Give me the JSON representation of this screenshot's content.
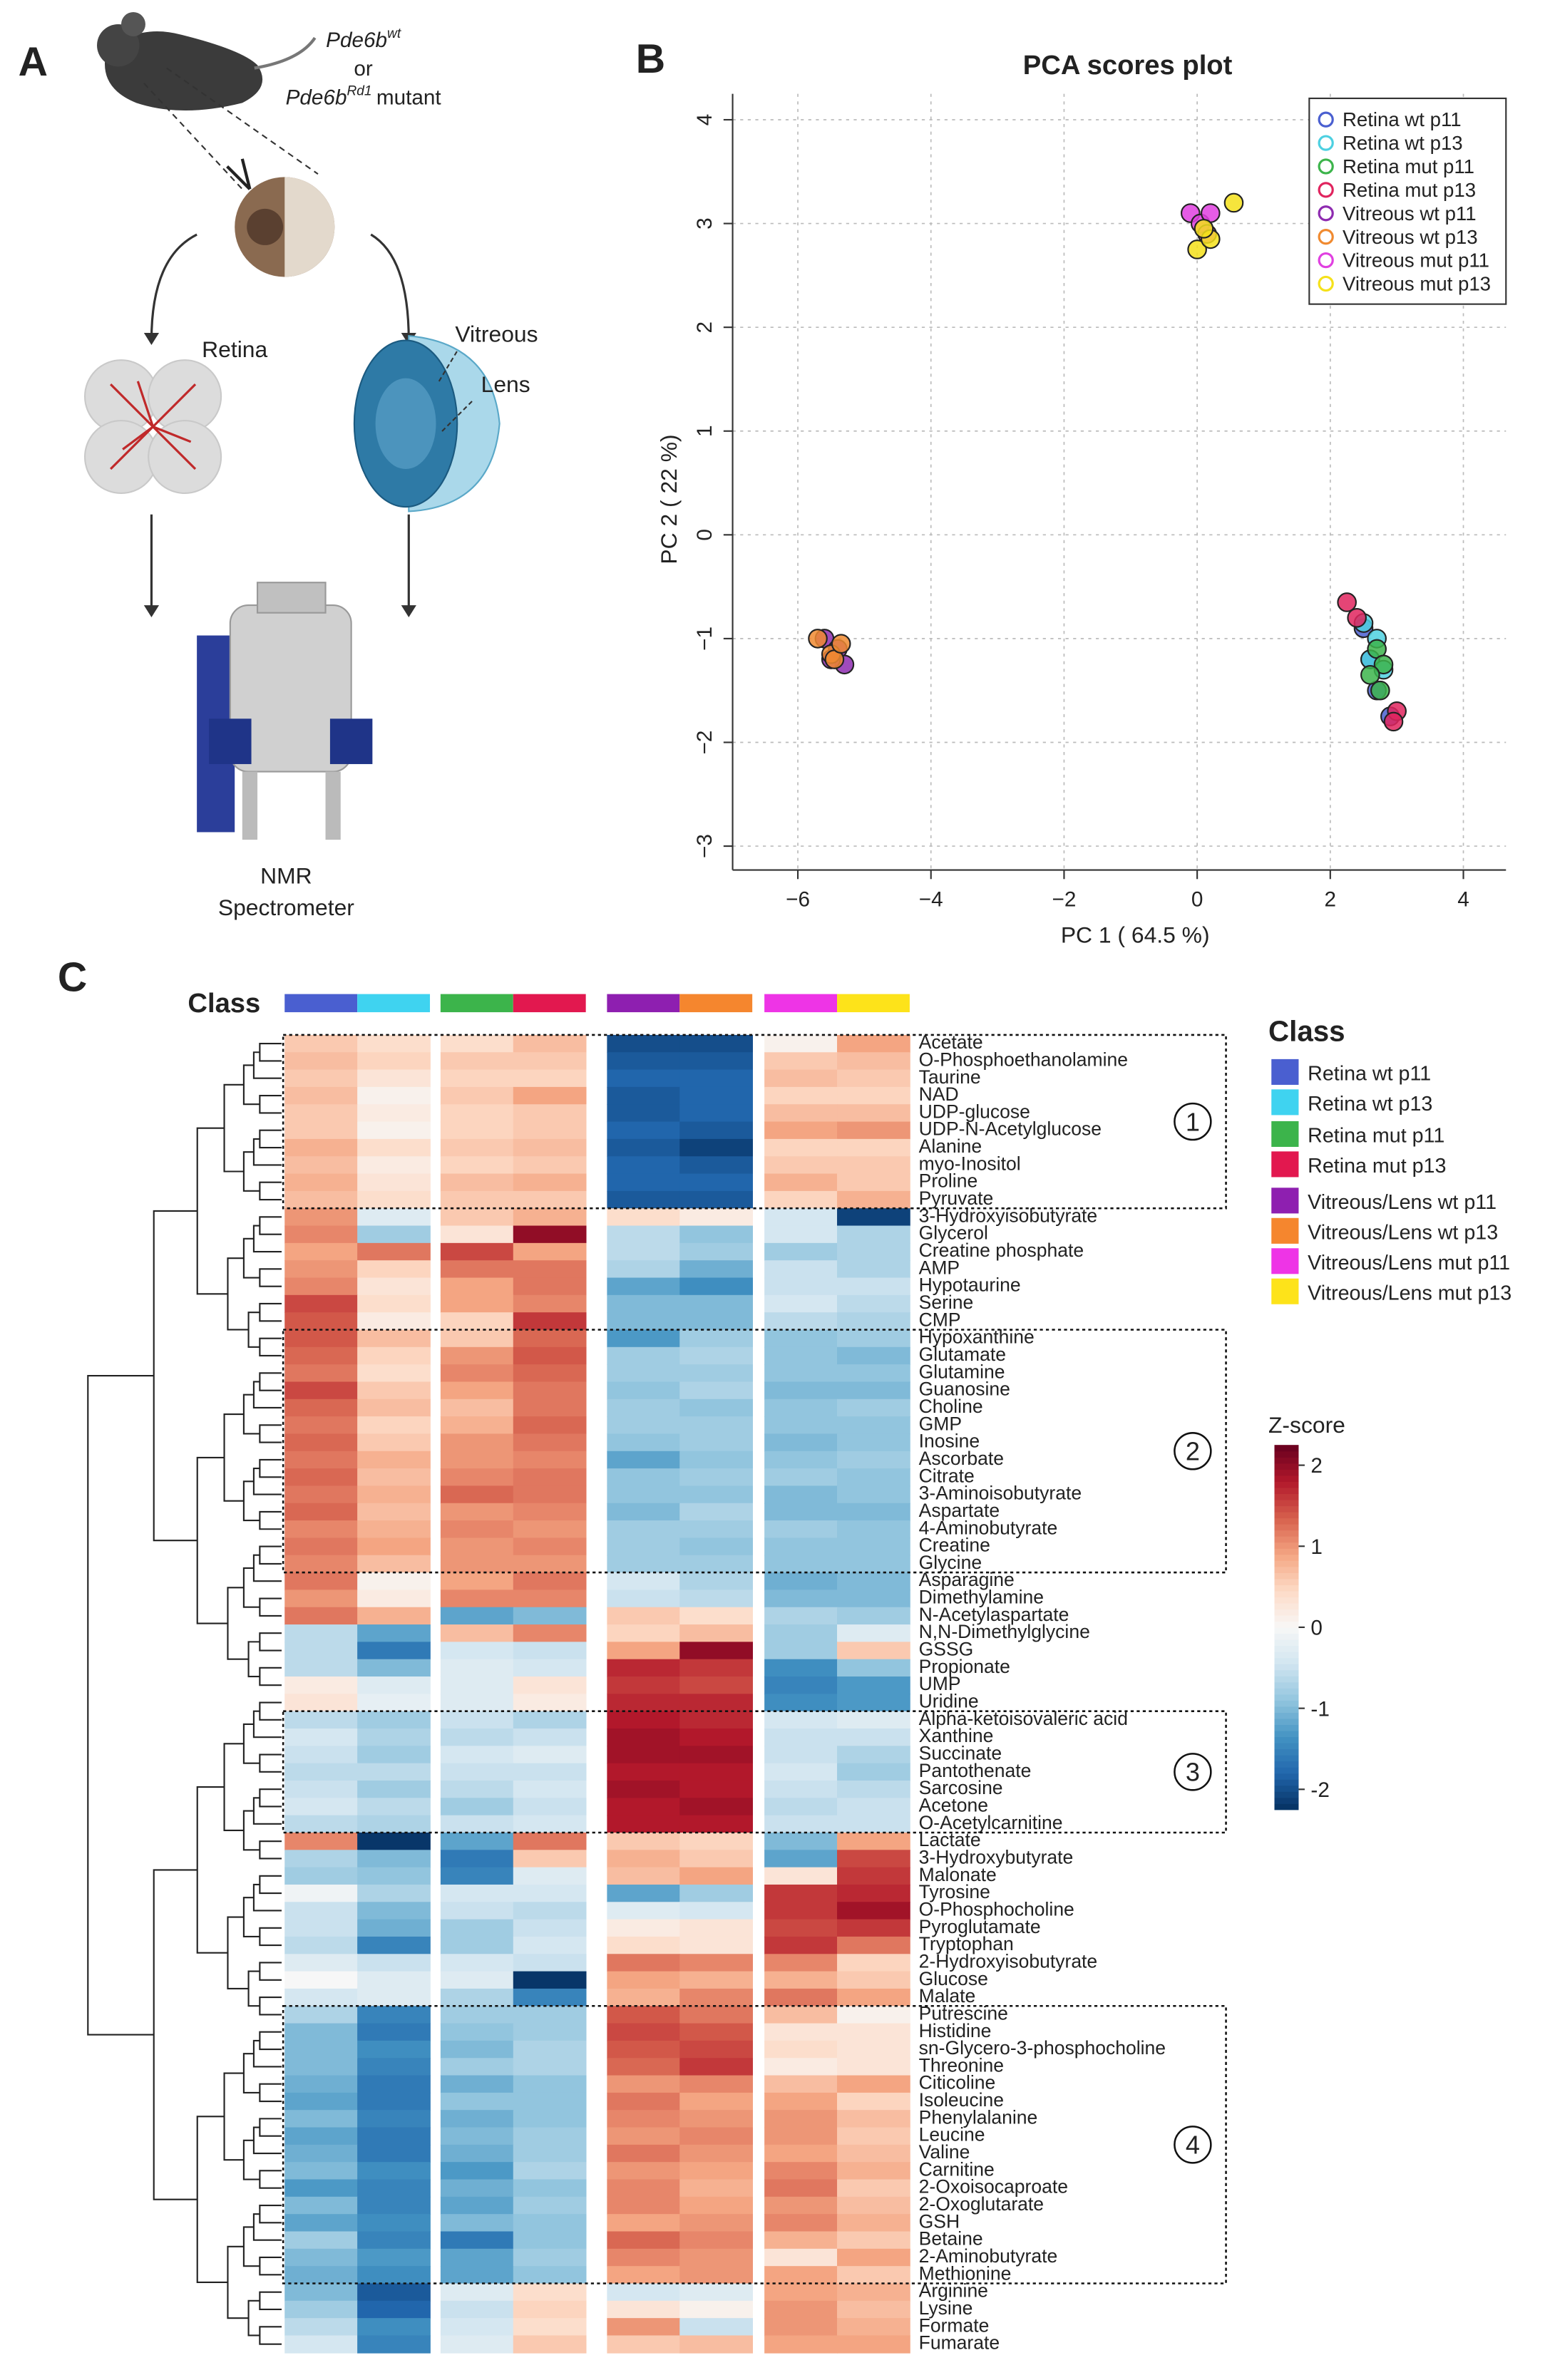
{
  "panels": {
    "a": "A",
    "b": "B",
    "c": "C"
  },
  "illustration": {
    "genotype_wt": {
      "gene": "Pde6b",
      "allele": "wt"
    },
    "or": "or",
    "genotype_mut": {
      "gene": "Pde6b",
      "allele": "Rd1",
      "suffix": "mutant"
    },
    "retina": "Retina",
    "vitreous": "Vitreous",
    "lens": "Lens",
    "instrument": [
      "NMR",
      "Spectrometer"
    ]
  },
  "chart_data": [
    {
      "type": "scatter",
      "title": "PCA scores plot",
      "xlabel": "PC 1 ( 64.5 %)",
      "ylabel": "PC 2 ( 22 %)",
      "xlim": [
        -6.98,
        4.64
      ],
      "ylim": [
        -3.23,
        4.25
      ],
      "xticks": [
        {
          "value": -6,
          "label": "−6"
        },
        {
          "value": -4,
          "label": "−4"
        },
        {
          "value": -2,
          "label": "−2"
        },
        0,
        2,
        4
      ],
      "yticks": [
        {
          "value": -3,
          "label": "−3"
        },
        {
          "value": -2,
          "label": "−2"
        },
        {
          "value": -1,
          "label": "−1"
        },
        0,
        1,
        2,
        3,
        4
      ],
      "grid": true,
      "legend": "top-right",
      "series": [
        {
          "name": "Retina wt p11",
          "color": "#4a5fd0",
          "x": [
            2.6,
            2.7,
            2.9,
            2.5
          ],
          "values": [
            -1.2,
            -1.5,
            -1.75,
            -0.9
          ]
        },
        {
          "name": "Retina wt p13",
          "color": "#4dd0e1",
          "x": [
            2.5,
            2.7,
            2.6,
            2.8
          ],
          "values": [
            -0.85,
            -1.0,
            -1.2,
            -1.3
          ]
        },
        {
          "name": "Retina mut p11",
          "color": "#3cb44b",
          "x": [
            2.7,
            2.8,
            2.6,
            2.75
          ],
          "values": [
            -1.1,
            -1.25,
            -1.35,
            -1.5
          ]
        },
        {
          "name": "Retina mut p13",
          "color": "#e0245e",
          "x": [
            2.25,
            2.4,
            3.0,
            2.95
          ],
          "values": [
            -0.65,
            -0.8,
            -1.7,
            -1.8
          ]
        },
        {
          "name": "Vitreous wt p11",
          "color": "#8e2bb0",
          "x": [
            -5.6,
            -5.4,
            -5.3,
            -5.5
          ],
          "values": [
            -1.0,
            -1.1,
            -1.25,
            -1.2
          ]
        },
        {
          "name": "Vitreous wt p13",
          "color": "#f08a30",
          "x": [
            -5.7,
            -5.5,
            -5.45,
            -5.35
          ],
          "values": [
            -1.0,
            -1.15,
            -1.2,
            -1.05
          ]
        },
        {
          "name": "Vitreous mut p11",
          "color": "#e040e0",
          "x": [
            -0.1,
            0.05,
            0.15,
            0.2
          ],
          "values": [
            3.1,
            3.0,
            2.9,
            3.1
          ]
        },
        {
          "name": "Vitreous mut p13",
          "color": "#f5e11a",
          "x": [
            0.0,
            0.2,
            0.55,
            0.1
          ],
          "values": [
            2.75,
            2.85,
            3.2,
            2.95
          ]
        }
      ]
    },
    {
      "type": "heatmap",
      "column_label": "Class",
      "legend_title": "Class",
      "columns": [
        "Retina wt p11",
        "Retina wt p13",
        "Retina mut p11",
        "Retina mut p13",
        "Vitreous/Lens wt p11",
        "Vitreous/Lens wt p13",
        "Vitreous/Lens mut p11",
        "Vitreous/Lens mut p13"
      ],
      "column_colors": [
        "#4a5fd0",
        "#3fd3f0",
        "#3cb44b",
        "#e2184f",
        "#8e1fb0",
        "#f5862e",
        "#ee34e6",
        "#fde31a"
      ],
      "colorbar_title": "Z-score",
      "zlim": [
        -2.25,
        2.25
      ],
      "zticks": [
        -2,
        -1,
        0,
        1,
        2
      ],
      "colors": [
        "#053061",
        "#2166ac",
        "#4393c3",
        "#92c5de",
        "#d1e5f0",
        "#f7f7f7",
        "#fddbc7",
        "#f4a582",
        "#d6604d",
        "#b2182b",
        "#67001f"
      ],
      "boxes": [
        {
          "label": "1",
          "rows": [
            0,
            9
          ]
        },
        {
          "label": "2",
          "rows": [
            17,
            30
          ]
        },
        {
          "label": "3",
          "rows": [
            39,
            45
          ]
        },
        {
          "label": "4",
          "rows": [
            56,
            71
          ]
        }
      ],
      "rows": [
        "Acetate",
        "O-Phosphoethanolamine",
        "Taurine",
        "NAD",
        "UDP-glucose",
        "UDP-N-Acetylglucose",
        "Alanine",
        "myo-Inositol",
        "Proline",
        "Pyruvate",
        "3-Hydroxyisobutyrate",
        "Glycerol",
        "Creatine phosphate",
        "AMP",
        "Hypotaurine",
        "Serine",
        "CMP",
        "Hypoxanthine",
        "Glutamate",
        "Glutamine",
        "Guanosine",
        "Choline",
        "GMP",
        "Inosine",
        "Ascorbate",
        "Citrate",
        "3-Aminoisobutyrate",
        "Aspartate",
        "4-Aminobutyrate",
        "Creatine",
        "Glycine",
        "Asparagine",
        "Dimethylamine",
        "N-Acetylaspartate",
        "N,N-Dimethylglycine",
        "GSSG",
        "Propionate",
        "UMP",
        "Uridine",
        "Alpha-ketoisovaleric acid",
        "Xanthine",
        "Succinate",
        "Pantothenate",
        "Sarcosine",
        "Acetone",
        "O-Acetylcarnitine",
        "Lactate",
        "3-Hydroxybutyrate",
        "Malonate",
        "Tyrosine",
        "O-Phosphocholine",
        "Pyroglutamate",
        "Tryptophan",
        "2-Hydroxyisobutyrate",
        "Glucose",
        "Malate",
        "Putrescine",
        "Histidine",
        "sn-Glycero-3-phosphocholine",
        "Threonine",
        "Citicoline",
        "Isoleucine",
        "Phenylalanine",
        "Leucine",
        "Valine",
        "Carnitine",
        "2-Oxoisocaproate",
        "2-Oxoglutarate",
        "GSH",
        "Betaine",
        "2-Aminobutyrate",
        "Methionine",
        "Arginine",
        "Lysine",
        "Formate",
        "Fumarate"
      ],
      "values": [
        [
          0.6,
          0.4,
          0.4,
          0.7,
          -2.0,
          -2.0,
          0.1,
          0.9
        ],
        [
          0.7,
          0.5,
          0.6,
          0.6,
          -1.9,
          -1.9,
          0.6,
          0.7
        ],
        [
          0.6,
          0.3,
          0.5,
          0.5,
          -1.8,
          -1.8,
          0.7,
          0.6
        ],
        [
          0.7,
          0.1,
          0.6,
          0.9,
          -1.9,
          -1.8,
          0.5,
          0.5
        ],
        [
          0.6,
          0.2,
          0.5,
          0.6,
          -1.9,
          -1.8,
          0.7,
          0.7
        ],
        [
          0.6,
          0.1,
          0.5,
          0.6,
          -1.8,
          -1.9,
          0.9,
          1.0
        ],
        [
          0.8,
          0.4,
          0.6,
          0.7,
          -1.9,
          -2.1,
          0.5,
          0.5
        ],
        [
          0.7,
          0.2,
          0.5,
          0.6,
          -1.8,
          -1.9,
          0.6,
          0.6
        ],
        [
          0.8,
          0.3,
          0.7,
          0.8,
          -1.8,
          -1.8,
          0.8,
          0.6
        ],
        [
          0.7,
          0.4,
          0.6,
          0.6,
          -1.9,
          -1.9,
          0.5,
          0.8
        ],
        [
          1.0,
          -0.3,
          0.6,
          0.8,
          0.4,
          0.2,
          -0.4,
          -2.1
        ],
        [
          1.1,
          -0.8,
          0.3,
          2.0,
          -0.6,
          -0.9,
          -0.4,
          -0.7
        ],
        [
          0.9,
          1.2,
          1.5,
          0.9,
          -0.6,
          -0.8,
          -0.8,
          -0.7
        ],
        [
          1.0,
          0.5,
          1.2,
          1.2,
          -0.7,
          -1.1,
          -0.5,
          -0.7
        ],
        [
          1.1,
          0.3,
          0.9,
          1.2,
          -1.2,
          -1.4,
          -0.5,
          -0.5
        ],
        [
          1.5,
          0.4,
          0.9,
          1.1,
          -1.0,
          -1.0,
          -0.4,
          -0.6
        ],
        [
          1.4,
          0.2,
          0.5,
          1.6,
          -1.0,
          -1.0,
          -0.6,
          -0.7
        ],
        [
          1.4,
          0.7,
          0.6,
          1.3,
          -1.3,
          -0.8,
          -0.9,
          -0.8
        ],
        [
          1.3,
          0.5,
          1.0,
          1.4,
          -0.8,
          -0.7,
          -0.9,
          -1.0
        ],
        [
          1.2,
          0.4,
          1.1,
          1.3,
          -0.8,
          -0.8,
          -0.9,
          -0.9
        ],
        [
          1.5,
          0.6,
          0.9,
          1.2,
          -0.9,
          -0.7,
          -1.0,
          -1.0
        ],
        [
          1.3,
          0.7,
          0.7,
          1.2,
          -0.8,
          -0.9,
          -0.9,
          -0.8
        ],
        [
          1.2,
          0.5,
          0.8,
          1.3,
          -0.8,
          -0.8,
          -0.9,
          -0.9
        ],
        [
          1.3,
          0.6,
          1.0,
          1.2,
          -0.9,
          -0.8,
          -1.0,
          -0.9
        ],
        [
          1.2,
          0.8,
          1.0,
          1.1,
          -1.2,
          -0.9,
          -0.9,
          -0.8
        ],
        [
          1.3,
          0.7,
          1.1,
          1.2,
          -0.9,
          -0.8,
          -0.8,
          -0.9
        ],
        [
          1.2,
          0.8,
          1.3,
          1.2,
          -0.9,
          -0.9,
          -1.0,
          -0.9
        ],
        [
          1.3,
          0.7,
          1.0,
          1.1,
          -1.0,
          -0.7,
          -1.0,
          -1.0
        ],
        [
          1.1,
          0.8,
          1.1,
          1.0,
          -0.8,
          -0.8,
          -0.8,
          -0.9
        ],
        [
          1.2,
          0.9,
          1.0,
          1.1,
          -0.8,
          -0.9,
          -0.9,
          -0.9
        ],
        [
          1.1,
          0.7,
          1.0,
          1.0,
          -0.8,
          -0.8,
          -0.9,
          -0.9
        ],
        [
          1.2,
          0.1,
          0.9,
          1.2,
          -0.4,
          -0.7,
          -1.1,
          -1.0
        ],
        [
          1.0,
          0.2,
          1.1,
          1.1,
          -0.5,
          -0.6,
          -1.0,
          -1.0
        ],
        [
          1.2,
          0.8,
          -1.2,
          -1.0,
          0.6,
          0.4,
          -0.7,
          -0.8
        ],
        [
          -0.6,
          -1.2,
          0.7,
          1.1,
          0.5,
          0.7,
          -0.8,
          -0.3
        ],
        [
          -0.6,
          -1.6,
          -0.4,
          -0.5,
          0.9,
          2.0,
          -0.8,
          0.6
        ],
        [
          -0.6,
          -1.0,
          -0.3,
          -0.4,
          1.7,
          1.6,
          -1.4,
          -0.9
        ],
        [
          0.2,
          -0.3,
          -0.3,
          0.3,
          1.6,
          1.5,
          -1.5,
          -1.3
        ],
        [
          0.3,
          -0.2,
          -0.3,
          0.2,
          1.7,
          1.7,
          -1.4,
          -1.3
        ],
        [
          -0.6,
          -0.8,
          -0.5,
          -0.7,
          1.8,
          1.7,
          -0.4,
          -0.3
        ],
        [
          -0.4,
          -0.7,
          -0.6,
          -0.5,
          1.9,
          1.8,
          -0.5,
          -0.5
        ],
        [
          -0.5,
          -0.8,
          -0.4,
          -0.3,
          1.9,
          1.9,
          -0.5,
          -0.7
        ],
        [
          -0.6,
          -0.6,
          -0.5,
          -0.5,
          1.8,
          1.8,
          -0.4,
          -0.8
        ],
        [
          -0.5,
          -0.8,
          -0.6,
          -0.4,
          1.9,
          1.8,
          -0.5,
          -0.6
        ],
        [
          -0.4,
          -0.6,
          -0.8,
          -0.5,
          1.8,
          1.9,
          -0.6,
          -0.5
        ],
        [
          -0.6,
          -0.7,
          -0.5,
          -0.4,
          1.8,
          1.8,
          -0.5,
          -0.5
        ],
        [
          1.1,
          -2.2,
          -1.2,
          1.2,
          0.6,
          0.5,
          -1.0,
          0.9
        ],
        [
          -0.7,
          -1.0,
          -1.6,
          0.6,
          0.8,
          0.6,
          -1.2,
          1.5
        ],
        [
          -0.8,
          -0.9,
          -1.5,
          -0.3,
          0.7,
          0.9,
          0.3,
          1.6
        ],
        [
          -0.1,
          -0.7,
          -0.4,
          -0.4,
          -1.2,
          -0.8,
          1.6,
          1.7
        ],
        [
          -0.5,
          -1.0,
          -0.5,
          -0.6,
          -0.3,
          -0.4,
          1.6,
          1.9
        ],
        [
          -0.5,
          -1.1,
          -0.8,
          -0.5,
          0.2,
          0.3,
          1.5,
          1.6
        ],
        [
          -0.6,
          -1.5,
          -0.8,
          -0.4,
          0.4,
          0.3,
          1.6,
          1.2
        ],
        [
          -0.3,
          -0.5,
          -0.4,
          -0.5,
          1.2,
          1.1,
          1.1,
          0.5
        ],
        [
          0.0,
          -0.3,
          -0.3,
          -2.2,
          0.9,
          0.8,
          0.8,
          0.6
        ],
        [
          -0.4,
          -0.3,
          -0.7,
          -1.5,
          0.8,
          1.1,
          1.2,
          0.9
        ],
        [
          -0.7,
          -1.5,
          -0.8,
          -0.8,
          1.4,
          1.2,
          0.7,
          0.1
        ],
        [
          -1.0,
          -1.6,
          -0.9,
          -0.8,
          1.5,
          1.4,
          0.3,
          0.3
        ],
        [
          -1.0,
          -1.4,
          -1.0,
          -0.7,
          1.4,
          1.5,
          0.4,
          0.3
        ],
        [
          -1.0,
          -1.5,
          -0.8,
          -0.7,
          1.3,
          1.6,
          0.2,
          0.3
        ],
        [
          -1.1,
          -1.6,
          -1.1,
          -0.9,
          1.0,
          1.1,
          0.7,
          0.9
        ],
        [
          -1.2,
          -1.6,
          -0.9,
          -0.9,
          1.2,
          0.9,
          0.9,
          0.5
        ],
        [
          -1.0,
          -1.5,
          -1.1,
          -0.9,
          1.1,
          1.0,
          1.0,
          0.7
        ],
        [
          -1.2,
          -1.6,
          -1.0,
          -0.8,
          1.0,
          1.1,
          1.0,
          0.6
        ],
        [
          -1.1,
          -1.6,
          -1.1,
          -0.8,
          1.2,
          1.0,
          0.9,
          0.7
        ],
        [
          -1.0,
          -1.4,
          -1.3,
          -0.7,
          1.0,
          0.9,
          1.1,
          0.8
        ],
        [
          -1.3,
          -1.5,
          -1.1,
          -0.9,
          1.1,
          0.8,
          1.2,
          0.6
        ],
        [
          -1.0,
          -1.5,
          -1.2,
          -0.8,
          1.1,
          0.9,
          1.0,
          0.7
        ],
        [
          -1.2,
          -1.4,
          -1.0,
          -0.9,
          0.9,
          1.0,
          1.1,
          0.8
        ],
        [
          -0.8,
          -1.5,
          -1.6,
          -0.9,
          1.3,
          1.1,
          0.8,
          0.6
        ],
        [
          -1.0,
          -1.3,
          -1.2,
          -0.8,
          1.1,
          1.0,
          0.3,
          0.9
        ],
        [
          -1.1,
          -1.4,
          -1.2,
          -0.9,
          0.9,
          1.0,
          0.9,
          0.6
        ],
        [
          -1.0,
          -1.9,
          -0.3,
          0.4,
          -0.4,
          -0.3,
          0.9,
          0.8
        ],
        [
          -0.8,
          -1.8,
          -0.5,
          0.5,
          0.3,
          0.1,
          1.0,
          0.7
        ],
        [
          -0.6,
          -1.4,
          -0.4,
          0.4,
          1.0,
          -0.5,
          1.0,
          0.8
        ],
        [
          -0.4,
          -1.5,
          -0.3,
          0.6,
          0.6,
          0.7,
          0.9,
          0.9
        ]
      ]
    }
  ]
}
